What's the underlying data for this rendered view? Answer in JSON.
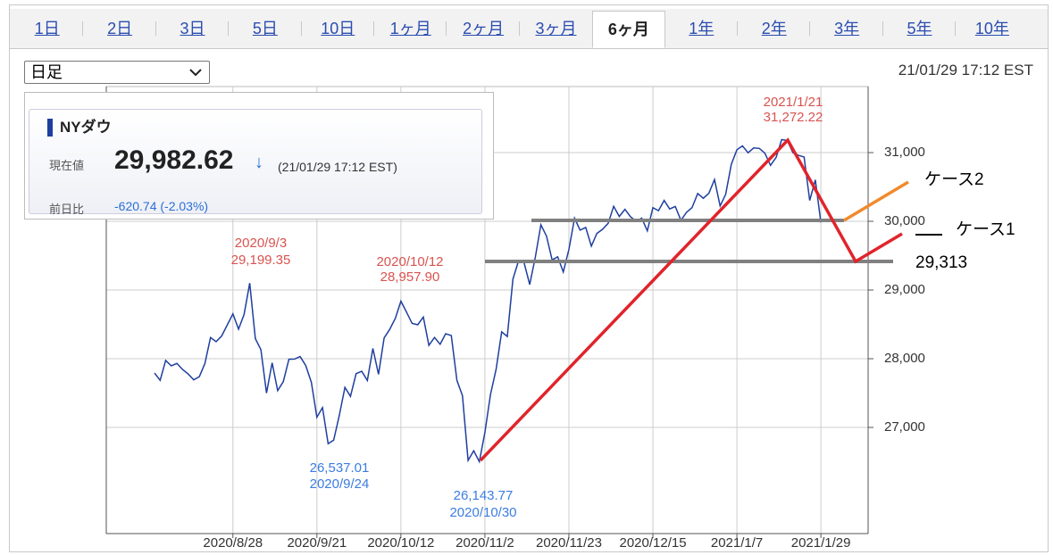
{
  "tabs": [
    "1日",
    "2日",
    "3日",
    "5日",
    "10日",
    "1ヶ月",
    "2ヶ月",
    "3ヶ月",
    "6ヶ月",
    "1年",
    "2年",
    "3年",
    "5年",
    "10年"
  ],
  "dropdown": "日足",
  "timestamp": "21/01/29 17:12 EST",
  "quote": {
    "name": "NYダウ",
    "price_label": "現在値",
    "price": "29,982.62",
    "arrow": "↓",
    "time": "(21/01/29 17:12 EST)",
    "change_label": "前日比",
    "change": "-620.74 (-2.03%)"
  },
  "overlay": {
    "case2": "ケース2",
    "case1": "ケース1",
    "target": "29,313"
  },
  "chart_data": {
    "type": "line",
    "color": "#1f3f9f",
    "grid": true,
    "x": [
      "2020/8/10",
      "2020/8/11",
      "2020/8/12",
      "2020/8/13",
      "2020/8/14",
      "2020/8/17",
      "2020/8/18",
      "2020/8/19",
      "2020/8/20",
      "2020/8/21",
      "2020/8/24",
      "2020/8/25",
      "2020/8/26",
      "2020/8/27",
      "2020/8/28",
      "2020/8/31",
      "2020/9/1",
      "2020/9/2",
      "2020/9/3",
      "2020/9/4",
      "2020/9/8",
      "2020/9/9",
      "2020/9/10",
      "2020/9/11",
      "2020/9/14",
      "2020/9/15",
      "2020/9/16",
      "2020/9/17",
      "2020/9/18",
      "2020/9/21",
      "2020/9/22",
      "2020/9/23",
      "2020/9/24",
      "2020/9/25",
      "2020/9/28",
      "2020/9/29",
      "2020/9/30",
      "2020/10/1",
      "2020/10/2",
      "2020/10/5",
      "2020/10/6",
      "2020/10/7",
      "2020/10/8",
      "2020/10/9",
      "2020/10/12",
      "2020/10/13",
      "2020/10/14",
      "2020/10/15",
      "2020/10/16",
      "2020/10/19",
      "2020/10/20",
      "2020/10/21",
      "2020/10/22",
      "2020/10/23",
      "2020/10/26",
      "2020/10/27",
      "2020/10/28",
      "2020/10/29",
      "2020/10/30",
      "2020/11/2",
      "2020/11/3",
      "2020/11/4",
      "2020/11/5",
      "2020/11/6",
      "2020/11/9",
      "2020/11/10",
      "2020/11/11",
      "2020/11/12",
      "2020/11/13",
      "2020/11/16",
      "2020/11/17",
      "2020/11/18",
      "2020/11/19",
      "2020/11/20",
      "2020/11/23",
      "2020/11/24",
      "2020/11/25",
      "2020/11/27",
      "2020/11/30",
      "2020/12/1",
      "2020/12/2",
      "2020/12/3",
      "2020/12/4",
      "2020/12/7",
      "2020/12/8",
      "2020/12/9",
      "2020/12/10",
      "2020/12/11",
      "2020/12/14",
      "2020/12/15",
      "2020/12/16",
      "2020/12/17",
      "2020/12/18",
      "2020/12/21",
      "2020/12/22",
      "2020/12/23",
      "2020/12/24",
      "2020/12/28",
      "2020/12/29",
      "2020/12/30",
      "2020/12/31",
      "2021/1/4",
      "2021/1/5",
      "2021/1/6",
      "2021/1/7",
      "2021/1/8",
      "2021/1/11",
      "2021/1/12",
      "2021/1/13",
      "2021/1/14",
      "2021/1/15",
      "2021/1/19",
      "2021/1/20",
      "2021/1/21",
      "2021/1/22",
      "2021/1/25",
      "2021/1/26",
      "2021/1/27",
      "2021/1/28",
      "2021/1/29"
    ],
    "values": [
      27791,
      27686,
      27976,
      27896,
      27931,
      27844,
      27778,
      27692,
      27739,
      27930,
      28308,
      28248,
      28331,
      28492,
      28653,
      28430,
      28645,
      29100,
      28292,
      28133,
      27500,
      27940,
      27535,
      27666,
      27993,
      27995,
      28032,
      27902,
      27657,
      27148,
      27288,
      26763,
      26815,
      27174,
      27584,
      27452,
      27782,
      27817,
      27683,
      28149,
      27773,
      28303,
      28426,
      28587,
      28838,
      28680,
      28514,
      28494,
      28607,
      28195,
      28309,
      28211,
      28364,
      28336,
      27685,
      27463,
      26520,
      26660,
      26502,
      26925,
      27481,
      27848,
      28391,
      28323,
      29158,
      29421,
      29398,
      29080,
      29480,
      29950,
      29784,
      29438,
      29483,
      29263,
      29592,
      30046,
      29872,
      29910,
      29639,
      29824,
      29883,
      29970,
      30218,
      30070,
      30174,
      30068,
      29999,
      30046,
      29861,
      30199,
      30155,
      30304,
      30179,
      30216,
      30015,
      30129,
      30200,
      30404,
      30335,
      30409,
      30606,
      30223,
      30392,
      30829,
      31041,
      31098,
      30998,
      31068,
      31061,
      30991,
      30814,
      30930,
      31188,
      31176,
      30997,
      30960,
      30937,
      30303,
      30603,
      29983
    ],
    "ylim": [
      25455,
      31961
    ],
    "yticks": [
      {
        "value": 27000,
        "label": "27,000"
      },
      {
        "value": 28000,
        "label": "28,000"
      },
      {
        "value": 29000,
        "label": "29,000"
      },
      {
        "value": 30000,
        "label": "30,000"
      },
      {
        "value": 31000,
        "label": "31,000"
      }
    ],
    "xticks": [
      "2020/8/28",
      "2020/9/21",
      "2020/10/12",
      "2020/11/2",
      "2020/11/23",
      "2020/12/15",
      "2021/1/7",
      "2021/1/29"
    ],
    "annotations": [
      {
        "date": "2020/9/3",
        "value": "29,199.35",
        "color": "#d9534f"
      },
      {
        "date": "2020/10/12",
        "value": "28,957.90",
        "color": "#d9534f"
      },
      {
        "value": "26,537.01",
        "date": "2020/9/24",
        "color": "#3b7de0"
      },
      {
        "value": "26,143.77",
        "date": "2020/10/30",
        "color": "#3b7de0"
      },
      {
        "date": "2021/1/21",
        "value": "31,272.22",
        "color": "#d9534f"
      }
    ]
  }
}
